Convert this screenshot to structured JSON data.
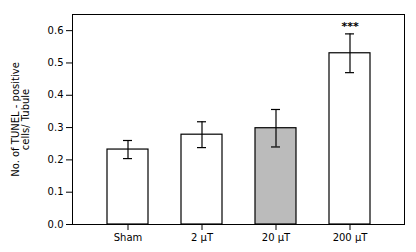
{
  "chart_data": {
    "type": "bar",
    "categories": [
      "Sham",
      "2 μT",
      "20 μT",
      "200 μT"
    ],
    "values": [
      0.232,
      0.278,
      0.298,
      0.53
    ],
    "errors": [
      0.028,
      0.04,
      0.058,
      0.06
    ],
    "colors": [
      "white",
      "white",
      "#bbbbbb",
      "white"
    ],
    "ylim": [
      0.0,
      0.65
    ],
    "yticks": [
      {
        "value": 0.0,
        "label": "0.0"
      },
      0.1,
      0.2,
      0.3,
      0.4,
      0.5,
      0.6
    ],
    "ylabel": "No. of TUNEL - positive\ncells/ Tubule",
    "annotations": [
      {
        "text": "***",
        "category": "200 μT"
      }
    ],
    "grid": false
  }
}
